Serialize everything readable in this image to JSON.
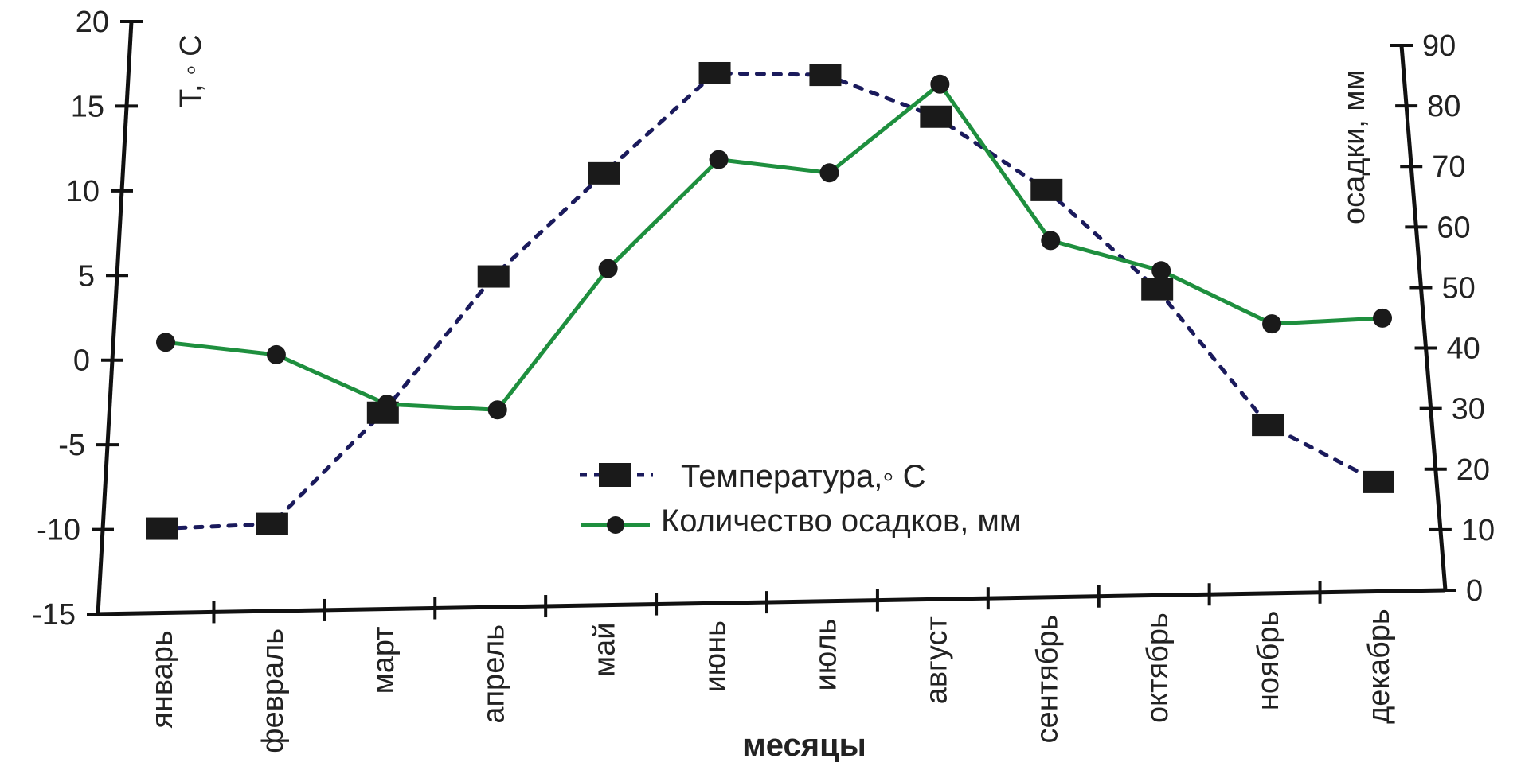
{
  "chart_data": {
    "type": "line",
    "categories": [
      "январь",
      "февраль",
      "март",
      "апрель",
      "май",
      "июнь",
      "июль",
      "август",
      "сентябрь",
      "октябрь",
      "ноябрь",
      "декабрь"
    ],
    "series": [
      {
        "name": "Температура,◦ С",
        "axis": "left",
        "values": [
          -10,
          -9.8,
          -3.2,
          5,
          11.3,
          17.5,
          17.5,
          15,
          10.5,
          4.3,
          -4.3,
          -8
        ],
        "color": "#1a1a5c",
        "line_style": "dotted",
        "marker": "square"
      },
      {
        "name": "Количество осадков, мм",
        "axis": "right",
        "values": [
          43,
          41,
          33,
          32,
          55,
          73,
          71,
          86,
          60,
          55,
          46,
          47
        ],
        "color": "#1e8f3e",
        "line_style": "solid",
        "marker": "circle"
      }
    ],
    "left_axis": {
      "label": "T, ◦ C",
      "ylim": [
        -15,
        20
      ],
      "ticks": [
        "20",
        "15",
        "10",
        "5",
        "0",
        "-5",
        "-10",
        "-15"
      ]
    },
    "right_axis": {
      "label": "осадки, мм",
      "ylim": [
        0,
        90
      ],
      "ticks": [
        "90",
        "80",
        "70",
        "60",
        "50",
        "40",
        "30",
        "20",
        "10",
        "0"
      ]
    },
    "xlabel": "месяцы",
    "legend_position": "center",
    "grid": false
  }
}
